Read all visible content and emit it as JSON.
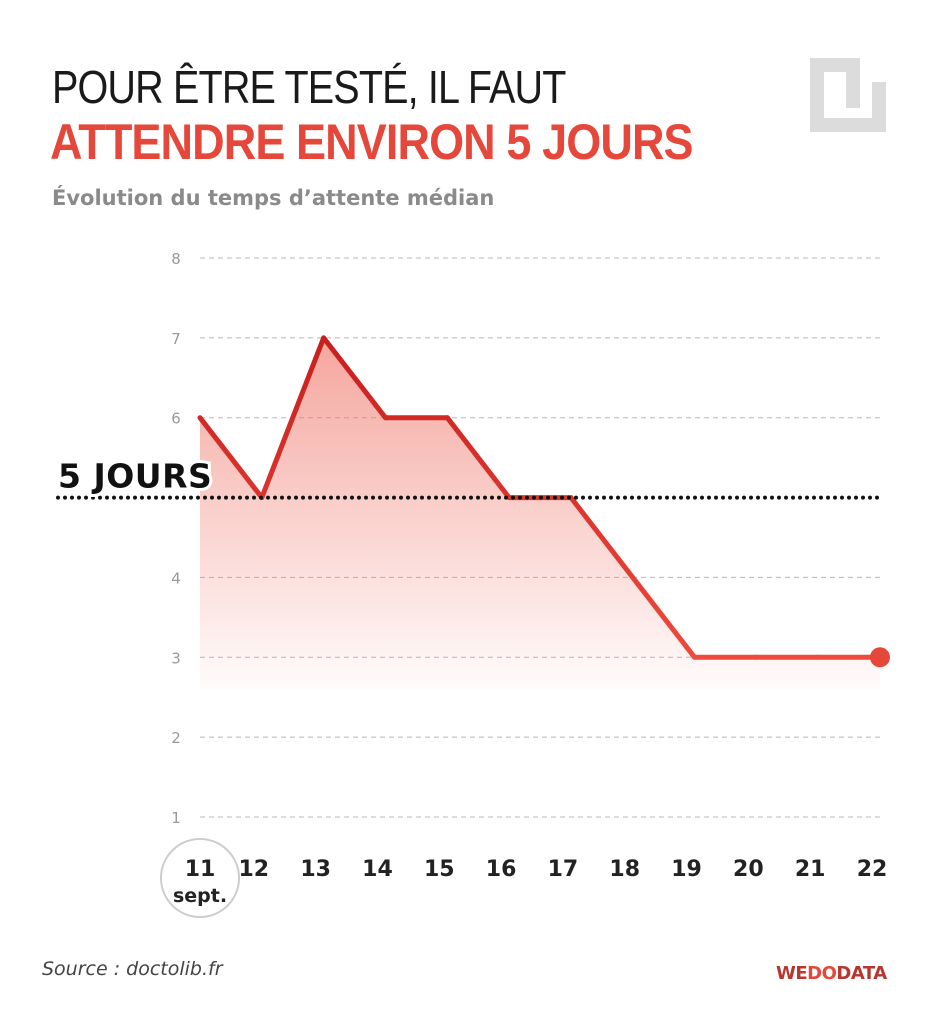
{
  "header": {
    "title_line1": "POUR ÊTRE TESTÉ, IL FAUT",
    "title_line2": "ATTENDRE ENVIRON 5 JOURS",
    "subtitle": "Évolution du temps d’attente médian"
  },
  "footer": {
    "source": "Source : doctolib.fr",
    "brand_we": "WE",
    "brand_do": "DO",
    "brand_data": "DATA"
  },
  "colors": {
    "accent": "#e5473a",
    "line_dark": "#c81e1e",
    "grid": "#b8b8b8",
    "logo": "#dcdcdc"
  },
  "icons": {
    "logo": "square-spiral-logo-icon"
  },
  "chart_data": {
    "type": "area",
    "title": "",
    "xlabel": "",
    "ylabel": "",
    "x": [
      "11",
      "12",
      "13",
      "14",
      "15",
      "16",
      "17",
      "18",
      "19",
      "20",
      "21",
      "22"
    ],
    "first_x_suffix": "sept.",
    "values": [
      6,
      5,
      7,
      6,
      6,
      5,
      5,
      4,
      3,
      3,
      3,
      3
    ],
    "ylim": [
      1,
      8
    ],
    "yticks": [
      1,
      2,
      3,
      4,
      6,
      7,
      8
    ],
    "grid": true,
    "reference_line": {
      "value": 5,
      "label": "5 JOURS"
    },
    "highlight_last_point": true
  }
}
